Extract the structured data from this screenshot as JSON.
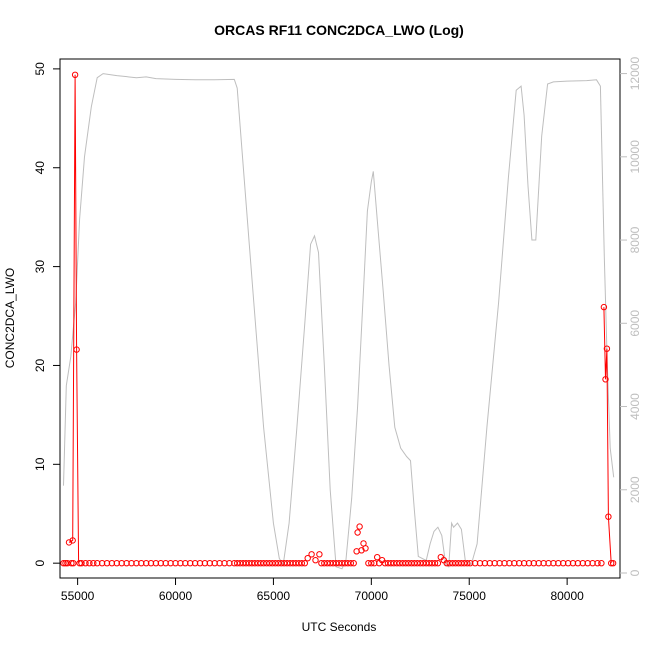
{
  "chart_data": {
    "type": "line",
    "title": "ORCAS RF11 CONC2DCA_LWO (Log)",
    "xlabel": "UTC Seconds",
    "ylabel": "CONC2DCA_LWO",
    "xlim": [
      54100,
      82700
    ],
    "ylim": [
      -1.5,
      51
    ],
    "y2lim": [
      -120,
      12350
    ],
    "x_ticks": [
      55000,
      60000,
      65000,
      70000,
      75000,
      80000
    ],
    "y_ticks": [
      0,
      10,
      20,
      30,
      40,
      50
    ],
    "y2_ticks": [
      0,
      2000,
      4000,
      6000,
      8000,
      10000,
      12000
    ],
    "series_colors": {
      "conc": "#ff0000",
      "altitude": "#bebebe"
    },
    "conc_line_segments": [
      [
        [
          54560,
          2.1
        ],
        [
          54750,
          2.3
        ],
        [
          54870,
          49.4
        ],
        [
          54950,
          21.6
        ],
        [
          55050,
          0
        ]
      ],
      [
        [
          81880,
          25.9
        ],
        [
          81960,
          18.6
        ],
        [
          82030,
          21.7
        ],
        [
          82110,
          4.7
        ],
        [
          82250,
          0
        ]
      ]
    ],
    "conc_points": [
      [
        54280,
        0
      ],
      [
        54380,
        0
      ],
      [
        54480,
        0
      ],
      [
        54680,
        0
      ],
      [
        54780,
        0
      ],
      [
        54560,
        2.1
      ],
      [
        54750,
        2.3
      ],
      [
        54870,
        49.4
      ],
      [
        54950,
        21.6
      ],
      [
        55100,
        0
      ],
      [
        55200,
        0
      ],
      [
        55400,
        0
      ],
      [
        55600,
        0
      ],
      [
        55800,
        0
      ],
      [
        56000,
        0
      ],
      [
        56250,
        0
      ],
      [
        56500,
        0
      ],
      [
        56750,
        0
      ],
      [
        57000,
        0
      ],
      [
        57250,
        0
      ],
      [
        57500,
        0
      ],
      [
        57750,
        0
      ],
      [
        58000,
        0
      ],
      [
        58250,
        0
      ],
      [
        58500,
        0
      ],
      [
        58750,
        0
      ],
      [
        59000,
        0
      ],
      [
        59250,
        0
      ],
      [
        59500,
        0
      ],
      [
        59750,
        0
      ],
      [
        60000,
        0
      ],
      [
        60250,
        0
      ],
      [
        60500,
        0
      ],
      [
        60750,
        0
      ],
      [
        61000,
        0
      ],
      [
        61250,
        0
      ],
      [
        61500,
        0
      ],
      [
        61750,
        0
      ],
      [
        62000,
        0
      ],
      [
        62250,
        0
      ],
      [
        62500,
        0
      ],
      [
        62750,
        0
      ],
      [
        63000,
        0
      ],
      [
        63150,
        0
      ],
      [
        63300,
        0
      ],
      [
        63450,
        0
      ],
      [
        63600,
        0
      ],
      [
        63750,
        0
      ],
      [
        63900,
        0
      ],
      [
        64050,
        0
      ],
      [
        64200,
        0
      ],
      [
        64350,
        0
      ],
      [
        64500,
        0
      ],
      [
        64650,
        0
      ],
      [
        64800,
        0
      ],
      [
        64950,
        0
      ],
      [
        65100,
        0
      ],
      [
        65250,
        0
      ],
      [
        65400,
        0
      ],
      [
        65550,
        0
      ],
      [
        65700,
        0
      ],
      [
        65850,
        0
      ],
      [
        66000,
        0
      ],
      [
        66150,
        0
      ],
      [
        66300,
        0
      ],
      [
        66450,
        0
      ],
      [
        66600,
        0
      ],
      [
        66750,
        0.5
      ],
      [
        66950,
        0.9
      ],
      [
        67150,
        0.3
      ],
      [
        67350,
        0.9
      ],
      [
        67450,
        0
      ],
      [
        67600,
        0
      ],
      [
        67750,
        0
      ],
      [
        67900,
        0
      ],
      [
        68050,
        0
      ],
      [
        68200,
        0
      ],
      [
        68350,
        0
      ],
      [
        68500,
        0
      ],
      [
        68650,
        0
      ],
      [
        68800,
        0
      ],
      [
        68950,
        0
      ],
      [
        69100,
        0
      ],
      [
        69250,
        1.2
      ],
      [
        69300,
        3.1
      ],
      [
        69400,
        3.7
      ],
      [
        69500,
        1.3
      ],
      [
        69600,
        2.0
      ],
      [
        69700,
        1.5
      ],
      [
        69850,
        0
      ],
      [
        70000,
        0
      ],
      [
        70150,
        0
      ],
      [
        70300,
        0.6
      ],
      [
        70400,
        0
      ],
      [
        70550,
        0.3
      ],
      [
        70700,
        0
      ],
      [
        70850,
        0
      ],
      [
        71000,
        0
      ],
      [
        71150,
        0
      ],
      [
        71300,
        0
      ],
      [
        71450,
        0
      ],
      [
        71600,
        0
      ],
      [
        71750,
        0
      ],
      [
        71900,
        0
      ],
      [
        72050,
        0
      ],
      [
        72200,
        0
      ],
      [
        72350,
        0
      ],
      [
        72500,
        0
      ],
      [
        72650,
        0
      ],
      [
        72800,
        0
      ],
      [
        72950,
        0
      ],
      [
        73100,
        0
      ],
      [
        73250,
        0
      ],
      [
        73400,
        0
      ],
      [
        73550,
        0.6
      ],
      [
        73700,
        0.3
      ],
      [
        73850,
        0
      ],
      [
        74000,
        0
      ],
      [
        74150,
        0
      ],
      [
        74300,
        0
      ],
      [
        74450,
        0
      ],
      [
        74600,
        0
      ],
      [
        74750,
        0
      ],
      [
        74900,
        0
      ],
      [
        75050,
        0
      ],
      [
        75300,
        0
      ],
      [
        75550,
        0
      ],
      [
        75800,
        0
      ],
      [
        76050,
        0
      ],
      [
        76300,
        0
      ],
      [
        76550,
        0
      ],
      [
        76800,
        0
      ],
      [
        77050,
        0
      ],
      [
        77300,
        0
      ],
      [
        77550,
        0
      ],
      [
        77800,
        0
      ],
      [
        78050,
        0
      ],
      [
        78300,
        0
      ],
      [
        78550,
        0
      ],
      [
        78800,
        0
      ],
      [
        79050,
        0
      ],
      [
        79300,
        0
      ],
      [
        79550,
        0
      ],
      [
        79800,
        0
      ],
      [
        80050,
        0
      ],
      [
        80300,
        0
      ],
      [
        80550,
        0
      ],
      [
        80800,
        0
      ],
      [
        81050,
        0
      ],
      [
        81300,
        0
      ],
      [
        81550,
        0
      ],
      [
        81750,
        0
      ],
      [
        81880,
        25.9
      ],
      [
        81960,
        18.6
      ],
      [
        82030,
        21.7
      ],
      [
        82110,
        4.7
      ],
      [
        82250,
        0
      ],
      [
        82350,
        0
      ]
    ],
    "altitude_line": [
      [
        54280,
        2100
      ],
      [
        54420,
        4500
      ],
      [
        54650,
        5200
      ],
      [
        54900,
        6500
      ],
      [
        55100,
        8500
      ],
      [
        55350,
        10000
      ],
      [
        55700,
        11200
      ],
      [
        56000,
        11900
      ],
      [
        56300,
        12000
      ],
      [
        57000,
        11950
      ],
      [
        58000,
        11900
      ],
      [
        58500,
        11920
      ],
      [
        59000,
        11880
      ],
      [
        60000,
        11860
      ],
      [
        61000,
        11850
      ],
      [
        62000,
        11850
      ],
      [
        63000,
        11860
      ],
      [
        63150,
        11650
      ],
      [
        63500,
        9500
      ],
      [
        64000,
        6500
      ],
      [
        64500,
        3500
      ],
      [
        65000,
        1200
      ],
      [
        65300,
        350
      ],
      [
        65500,
        200
      ],
      [
        65800,
        1200
      ],
      [
        66200,
        3500
      ],
      [
        66600,
        6000
      ],
      [
        66900,
        7900
      ],
      [
        67100,
        8100
      ],
      [
        67300,
        7700
      ],
      [
        67600,
        5000
      ],
      [
        67900,
        2000
      ],
      [
        68200,
        150
      ],
      [
        68500,
        100
      ],
      [
        68700,
        300
      ],
      [
        69000,
        1800
      ],
      [
        69300,
        4000
      ],
      [
        69600,
        6800
      ],
      [
        69800,
        8700
      ],
      [
        70000,
        9400
      ],
      [
        70100,
        9650
      ],
      [
        70300,
        8500
      ],
      [
        70600,
        6800
      ],
      [
        70900,
        5000
      ],
      [
        71200,
        3500
      ],
      [
        71500,
        3000
      ],
      [
        71800,
        2800
      ],
      [
        72000,
        2700
      ],
      [
        72200,
        1500
      ],
      [
        72400,
        400
      ],
      [
        72800,
        300
      ],
      [
        73000,
        700
      ],
      [
        73200,
        1000
      ],
      [
        73400,
        1100
      ],
      [
        73600,
        900
      ],
      [
        73800,
        200
      ],
      [
        73950,
        150
      ],
      [
        74100,
        1200
      ],
      [
        74200,
        1100
      ],
      [
        74400,
        1200
      ],
      [
        74600,
        1050
      ],
      [
        74800,
        300
      ],
      [
        75100,
        200
      ],
      [
        75400,
        700
      ],
      [
        75900,
        3500
      ],
      [
        76500,
        6500
      ],
      [
        77000,
        9500
      ],
      [
        77400,
        11600
      ],
      [
        77650,
        11700
      ],
      [
        77800,
        11000
      ],
      [
        78000,
        9300
      ],
      [
        78200,
        8000
      ],
      [
        78400,
        8000
      ],
      [
        78700,
        10500
      ],
      [
        79000,
        11750
      ],
      [
        79300,
        11800
      ],
      [
        80000,
        11820
      ],
      [
        81000,
        11830
      ],
      [
        81500,
        11850
      ],
      [
        81700,
        11700
      ],
      [
        81900,
        7600
      ],
      [
        82050,
        5000
      ],
      [
        82200,
        3000
      ],
      [
        82380,
        2300
      ]
    ]
  }
}
